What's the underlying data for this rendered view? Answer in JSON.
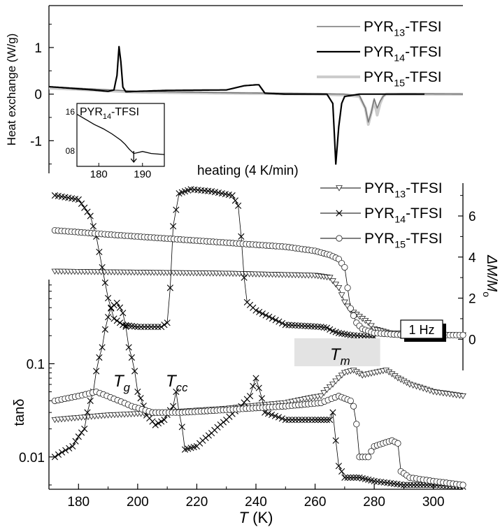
{
  "chart_data": [
    {
      "type": "line",
      "panel": "dsc",
      "ylabel": "Heat exchange (W/g)",
      "annotation": "heating (4 K/min)",
      "x_range": [
        170,
        310
      ],
      "y_range": [
        -1.7,
        1.9
      ],
      "y_ticks": [
        1,
        0,
        -1
      ],
      "y_tick_labels": [
        "1",
        "0",
        "-1"
      ],
      "legend": [
        {
          "prefix": "PYR",
          "sub": "13",
          "suffix": "-TFSI",
          "color": "#777777"
        },
        {
          "prefix": "PYR",
          "sub": "14",
          "suffix": "-TFSI",
          "color": "#000000"
        },
        {
          "prefix": "PYR",
          "sub": "15",
          "suffix": "-TFSI",
          "color": "#cccccc"
        }
      ],
      "series": [
        {
          "name": "PYR13-TFSI",
          "color": "#777777",
          "x": [
            170,
            200,
            230,
            260,
            270,
            275,
            277,
            278,
            279,
            280,
            281,
            282,
            283,
            284,
            290,
            310
          ],
          "y": [
            0.16,
            0.06,
            0.03,
            0.01,
            0.0,
            -0.03,
            -0.3,
            -0.6,
            -0.4,
            -0.1,
            -0.3,
            -0.15,
            -0.05,
            0.0,
            0.01,
            0.0
          ]
        },
        {
          "name": "PYR14-TFSI",
          "color": "#000000",
          "x": [
            170,
            185,
            190,
            192,
            193,
            193.7,
            194.3,
            195,
            196,
            200,
            210,
            230,
            236,
            240,
            241,
            243,
            250,
            264,
            266,
            267,
            268,
            269,
            270,
            275,
            297
          ],
          "y": [
            0.16,
            0.09,
            0.06,
            0.09,
            0.4,
            1.02,
            0.7,
            0.15,
            0.05,
            0.06,
            0.08,
            0.09,
            0.18,
            0.2,
            0.2,
            0.02,
            0.0,
            0.0,
            -0.2,
            -1.5,
            -0.7,
            -0.2,
            -0.05,
            0.0,
            0.0
          ]
        },
        {
          "name": "PYR15-TFSI",
          "color": "#cccccc",
          "x": [
            170,
            200,
            230,
            260,
            270,
            275,
            277,
            278,
            279,
            280,
            281,
            282,
            283,
            284,
            290,
            310
          ],
          "y": [
            0.13,
            0.04,
            0.02,
            0.0,
            -0.02,
            -0.05,
            -0.3,
            -0.65,
            -0.4,
            -0.15,
            -0.45,
            -0.2,
            -0.05,
            0.0,
            0.0,
            0.0
          ]
        }
      ],
      "inset": {
        "label_prefix": "PYR",
        "label_sub": "14",
        "label_suffix": "-TFSI",
        "x_range": [
          175,
          195
        ],
        "x_ticks": [
          180,
          190
        ],
        "y_tick_labels": [
          "16",
          "08"
        ],
        "x": [
          175,
          177,
          179,
          181,
          183,
          185,
          186,
          187,
          188,
          189,
          190,
          192,
          195
        ],
        "y": [
          1.0,
          0.9,
          0.8,
          0.72,
          0.62,
          0.5,
          0.42,
          0.32,
          0.24,
          0.26,
          0.28,
          0.24,
          0.22
        ]
      }
    },
    {
      "type": "scatter",
      "panel": "modulus",
      "ylabel_sub": "o",
      "ylabel_main": "ΔM/M",
      "annotation": "1 Hz",
      "x_range": [
        170,
        310
      ],
      "y_range": [
        -0.5,
        7.6
      ],
      "y_ticks": [
        0,
        2,
        4,
        6
      ],
      "y_tick_labels": [
        "0",
        "2",
        "4",
        "6"
      ],
      "legend": [
        {
          "prefix": "PYR",
          "sub": "13",
          "suffix": "-TFSI",
          "marker": "triangle"
        },
        {
          "prefix": "PYR",
          "sub": "14",
          "suffix": "-TFSI",
          "marker": "cross"
        },
        {
          "prefix": "PYR",
          "sub": "15",
          "suffix": "-TFSI",
          "marker": "circle"
        }
      ],
      "series": [
        {
          "name": "PYR13-TFSI",
          "marker": "triangle",
          "x": [
            172,
            200,
            230,
            260,
            265,
            268,
            270,
            272,
            274,
            276,
            278,
            280,
            285,
            310
          ],
          "y": [
            3.3,
            3.25,
            3.2,
            3.1,
            3.0,
            2.5,
            1.8,
            1.4,
            1.2,
            1.0,
            0.8,
            0.5,
            0.3,
            0.2
          ]
        },
        {
          "name": "PYR14-TFSI",
          "marker": "cross",
          "x": [
            172,
            180,
            184,
            186,
            188,
            190,
            192,
            195,
            200,
            208,
            210,
            211,
            212,
            214,
            218,
            225,
            232,
            234,
            235,
            236,
            237,
            240,
            250,
            262,
            264,
            266,
            268,
            272,
            280
          ],
          "y": [
            7.0,
            6.8,
            6.0,
            5.0,
            3.5,
            2.0,
            1.0,
            0.7,
            0.6,
            0.6,
            0.8,
            2.5,
            5.5,
            7.1,
            7.3,
            7.2,
            7.0,
            6.5,
            5.0,
            3.0,
            1.8,
            1.4,
            0.7,
            0.6,
            0.55,
            0.4,
            0.3,
            0.2,
            0.1
          ]
        },
        {
          "name": "PYR15-TFSI",
          "marker": "circle",
          "x": [
            172,
            190,
            210,
            230,
            250,
            260,
            265,
            268,
            270,
            271,
            272,
            274,
            276,
            280,
            290,
            310
          ],
          "y": [
            5.3,
            5.1,
            4.9,
            4.7,
            4.5,
            4.3,
            4.1,
            3.9,
            3.5,
            2.5,
            1.5,
            0.8,
            0.5,
            0.3,
            0.2,
            0.2
          ]
        }
      ]
    },
    {
      "type": "scatter",
      "panel": "loss",
      "ylabel": "tanδ",
      "xlabel_italic": "T",
      "xlabel_unit": " (K)",
      "x_range": [
        170,
        310
      ],
      "x_ticks": [
        180,
        200,
        220,
        240,
        260,
        280,
        300
      ],
      "x_tick_labels": [
        "180",
        "200",
        "220",
        "240",
        "260",
        "280",
        "300"
      ],
      "y_scale": "log",
      "y_range": [
        0.0045,
        0.8
      ],
      "y_ticks": [
        0.1,
        0.01
      ],
      "y_tick_labels": [
        "0.1",
        "0.01"
      ],
      "annotations": [
        {
          "italic": "T",
          "sub": "g",
          "x": 193,
          "y": 0.12
        },
        {
          "italic": "T",
          "sub": "cc",
          "x": 215,
          "y": 0.1
        },
        {
          "italic": "T",
          "sub": "m",
          "x": 268,
          "y": 0.12,
          "band": [
            253,
            282
          ]
        }
      ],
      "series": [
        {
          "name": "PYR13-TFSI",
          "marker": "triangle",
          "x": [
            172,
            190,
            210,
            230,
            250,
            262,
            266,
            270,
            273,
            276,
            280,
            284,
            288,
            292,
            300,
            310
          ],
          "y": [
            0.025,
            0.028,
            0.03,
            0.033,
            0.038,
            0.045,
            0.06,
            0.08,
            0.085,
            0.075,
            0.08,
            0.085,
            0.07,
            0.06,
            0.05,
            0.045
          ]
        },
        {
          "name": "PYR14-TFSI",
          "marker": "cross",
          "x": [
            172,
            178,
            182,
            185,
            188,
            191,
            193,
            195,
            197,
            200,
            203,
            206,
            209,
            212,
            213,
            214,
            216,
            220,
            225,
            230,
            235,
            238,
            240,
            241,
            243,
            250,
            260,
            265,
            266,
            267,
            268,
            270,
            275,
            280,
            290,
            300,
            310
          ],
          "y": [
            0.01,
            0.013,
            0.02,
            0.05,
            0.15,
            0.4,
            0.45,
            0.35,
            0.15,
            0.05,
            0.028,
            0.022,
            0.025,
            0.035,
            0.05,
            0.03,
            0.012,
            0.013,
            0.018,
            0.025,
            0.035,
            0.045,
            0.07,
            0.055,
            0.03,
            0.025,
            0.025,
            0.025,
            0.03,
            0.015,
            0.008,
            0.006,
            0.006,
            0.0055,
            0.005,
            0.005,
            0.0048
          ]
        },
        {
          "name": "PYR15-TFSI",
          "marker": "circle",
          "x": [
            172,
            180,
            186,
            192,
            198,
            205,
            215,
            230,
            250,
            262,
            268,
            272,
            273,
            275,
            278,
            280,
            283,
            286,
            288,
            289,
            292,
            300,
            310
          ],
          "y": [
            0.04,
            0.045,
            0.05,
            0.042,
            0.035,
            0.03,
            0.03,
            0.032,
            0.035,
            0.038,
            0.045,
            0.04,
            0.035,
            0.01,
            0.01,
            0.013,
            0.014,
            0.015,
            0.014,
            0.007,
            0.006,
            0.0055,
            0.005
          ]
        }
      ]
    }
  ]
}
